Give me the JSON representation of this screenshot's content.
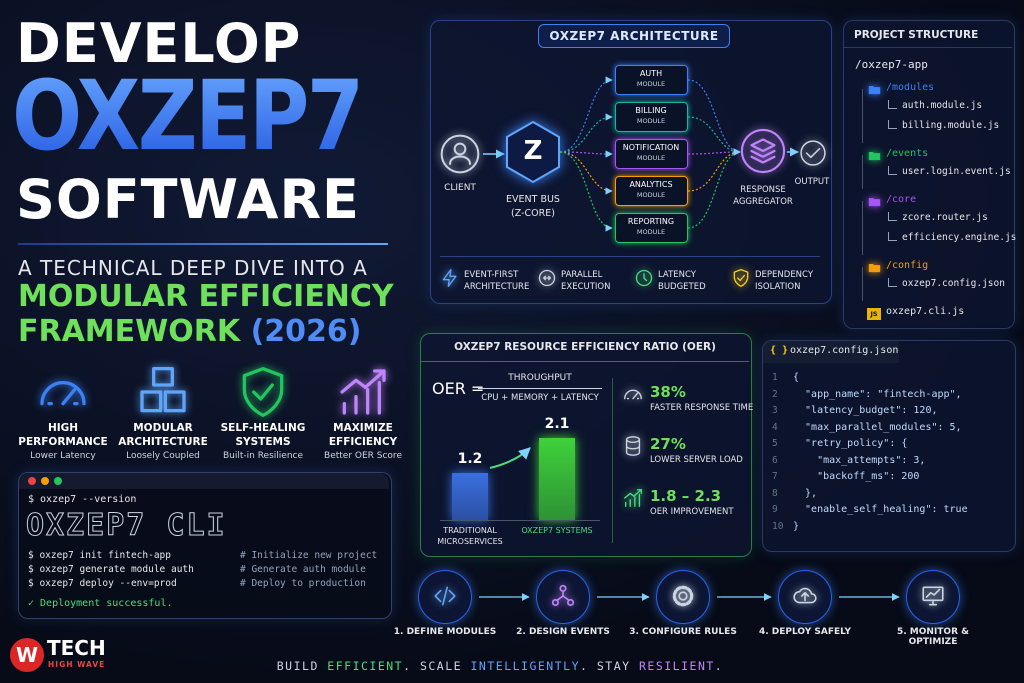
{
  "hero": {
    "line1": "DEVELOP",
    "line2": "OXZEP7",
    "line3": "SOFTWARE",
    "subtitle": "A TECHNICAL DEEP DIVE INTO A",
    "highlight1": "MODULAR EFFICIENCY",
    "highlight2": "FRAMEWORK",
    "year": "(2026)"
  },
  "features": [
    {
      "title": "HIGH PERFORMANCE",
      "subtitle": "Lower Latency"
    },
    {
      "title": "MODULAR ARCHITECTURE",
      "subtitle": "Loosely Coupled"
    },
    {
      "title": "SELF-HEALING SYSTEMS",
      "subtitle": "Built-in Resilience"
    },
    {
      "title": "MAXIMIZE EFFICIENCY",
      "subtitle": "Better OER Score"
    }
  ],
  "cli": {
    "version_cmd": "$ oxzep7 --version",
    "banner": "OXZEP7 CLI",
    "commands": [
      {
        "command": "$ oxzep7 init fintech-app",
        "comment": "# Initialize new project"
      },
      {
        "command": "$ oxzep7 generate module auth",
        "comment": "# Generate auth module"
      },
      {
        "command": "$ oxzep7 deploy --env=prod",
        "comment": "# Deploy to production"
      }
    ],
    "success": "✓ Deployment successful."
  },
  "brand": {
    "mark": "W",
    "name": "TECH",
    "tagline": "HIGH WAVE"
  },
  "architecture": {
    "title": "OXZEP7 ARCHITECTURE",
    "client": "CLIENT",
    "bus_icon": "Z",
    "bus": "EVENT BUS",
    "bus_sub": "(Z-CORE)",
    "modules": [
      {
        "name": "AUTH",
        "sub": "MODULE",
        "color": "#3b82f6"
      },
      {
        "name": "BILLING",
        "sub": "MODULE",
        "color": "#14b8a6"
      },
      {
        "name": "NOTIFICATION",
        "sub": "MODULE",
        "color": "#a855f7"
      },
      {
        "name": "ANALYTICS",
        "sub": "MODULE",
        "color": "#f59e0b"
      },
      {
        "name": "REPORTING",
        "sub": "MODULE",
        "color": "#22c55e"
      }
    ],
    "aggregator": "RESPONSE AGGREGATOR",
    "output": "OUTPUT",
    "features": [
      "EVENT-FIRST ARCHITECTURE",
      "PARALLEL EXECUTION",
      "LATENCY BUDGETED",
      "DEPENDENCY ISOLATION"
    ]
  },
  "project_structure": {
    "title": "PROJECT STRUCTURE",
    "root": "/oxzep7-app",
    "folders": [
      {
        "name": "/modules",
        "color": "#3b82f6",
        "files": [
          "auth.module.js",
          "billing.module.js"
        ]
      },
      {
        "name": "/events",
        "color": "#22c55e",
        "files": [
          "user.login.event.js"
        ]
      },
      {
        "name": "/core",
        "color": "#a855f7",
        "files": [
          "zcore.router.js",
          "efficiency.engine.js"
        ]
      },
      {
        "name": "/config",
        "color": "#f59e0b",
        "files": [
          "oxzep7.config.json"
        ]
      }
    ],
    "root_file_icon": "JS",
    "root_file": "oxzep7.cli.js"
  },
  "oer": {
    "title": "OXZEP7 RESOURCE EFFICIENCY RATIO (OER)",
    "label": "OER =",
    "numerator": "THROUGHPUT",
    "denominator": "CPU + MEMORY + LATENCY",
    "chart": {
      "type": "bar",
      "categories": [
        "TRADITIONAL MICROSERVICES",
        "OXZEP7 SYSTEMS"
      ],
      "values": [
        1.2,
        2.1
      ],
      "colors": [
        "#3b6fe0",
        "#3fd13a"
      ]
    },
    "stats": [
      {
        "value": "38%",
        "label": "FASTER RESPONSE TIME"
      },
      {
        "value": "27%",
        "label": "LOWER SERVER LOAD"
      },
      {
        "value": "1.8 – 2.3",
        "label": "OER IMPROVEMENT"
      }
    ]
  },
  "config": {
    "icon": "{ }",
    "filename": "oxzep7.config.json",
    "line_numbers": [
      1,
      2,
      3,
      4,
      5,
      6,
      7,
      8,
      9,
      10
    ],
    "lines": [
      "{",
      "  \"app_name\": \"fintech-app\",",
      "  \"latency_budget\": 120,",
      "  \"max_parallel_modules\": 5,",
      "  \"retry_policy\": {",
      "    \"max_attempts\": 3,",
      "    \"backoff_ms\": 200",
      "  },",
      "  \"enable_self_healing\": true",
      "}"
    ]
  },
  "steps": [
    "1. DEFINE MODULES",
    "2. DESIGN EVENTS",
    "3. CONFIGURE RULES",
    "4. DEPLOY SAFELY",
    "5. MONITOR & OPTIMIZE"
  ],
  "footer": [
    {
      "text": "BUILD ",
      "color": "#cbd5e1"
    },
    {
      "text": "EFFICIENT",
      "color": "#4ade80"
    },
    {
      "text": ". SCALE ",
      "color": "#cbd5e1"
    },
    {
      "text": "INTELLIGENTLY",
      "color": "#60a5fa"
    },
    {
      "text": ". STAY ",
      "color": "#cbd5e1"
    },
    {
      "text": "RESILIENT",
      "color": "#c084fc"
    },
    {
      "text": ".",
      "color": "#cbd5e1"
    }
  ]
}
